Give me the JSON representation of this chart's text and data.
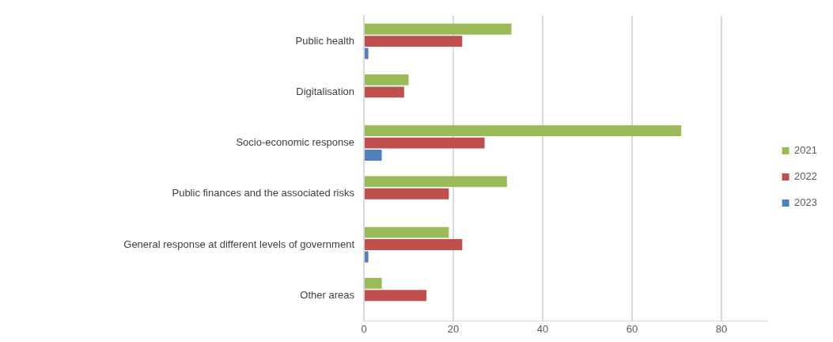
{
  "chart_data": {
    "type": "bar",
    "orientation": "horizontal",
    "categories": [
      "Public health",
      "Digitalisation",
      "Socio-economic response",
      "Public finances and the associated risks",
      "General response at different levels of government",
      "Other areas"
    ],
    "series": [
      {
        "name": "2021",
        "color": "#9bbb59",
        "values": [
          33,
          10,
          71,
          32,
          19,
          4
        ]
      },
      {
        "name": "2022",
        "color": "#c0504d",
        "values": [
          22,
          9,
          27,
          19,
          22,
          14
        ]
      },
      {
        "name": "2023",
        "color": "#4f81bd",
        "values": [
          1,
          null,
          4,
          null,
          1,
          null
        ]
      }
    ],
    "xlim": [
      0,
      90
    ],
    "xticks": [
      0,
      20,
      40,
      60,
      80
    ],
    "grid": "x",
    "legend": "right"
  }
}
